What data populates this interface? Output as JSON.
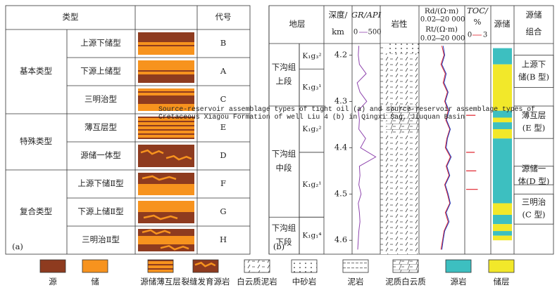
{
  "caption": "Source-reservoir assemblage types of tight oil (a) and source-reservoir assemblage types of Cretaceous Xiagou Formation of well Liu 4 (b) in Qingxi Sag, Jiuquan Basin",
  "panel_a": {
    "label": "(a)",
    "header": {
      "type": "类型",
      "code": "代号"
    },
    "source_color": "#8e3b1f",
    "reservoir_color": "#f7931e",
    "groups": [
      {
        "name": "基本类型",
        "rows": [
          {
            "subtype": "上源下储型",
            "code": "B"
          },
          {
            "subtype": "下源上储型",
            "code": "A"
          },
          {
            "subtype": "三明治型",
            "code": "C"
          }
        ]
      },
      {
        "name": "特殊类型",
        "rows": [
          {
            "subtype": "薄互层型",
            "code": "E"
          },
          {
            "subtype": "源储一体型",
            "code": "D"
          }
        ]
      },
      {
        "name": "复合类型",
        "rows": [
          {
            "subtype": "上源下储Ⅱ型",
            "code": "F"
          },
          {
            "subtype": "下源上储Ⅱ型",
            "code": "G"
          },
          {
            "subtype": "三明治Ⅱ型",
            "code": "H"
          }
        ]
      }
    ]
  },
  "panel_b": {
    "label": "(b)",
    "headers": {
      "strata": "地层",
      "depth": "深度/",
      "depth_unit": "km",
      "gr": "GR/API",
      "gr_scale": [
        0,
        500
      ],
      "lithology": "岩性",
      "rd": "Rd/(Ω·m)",
      "rt": "Rt/(Ω·m)",
      "res_scale": [
        0.02,
        {
          "value": 20000,
          "label": "20 000"
        }
      ],
      "toc": "TOC/",
      "toc_unit": "%",
      "toc_scale": [
        0,
        3
      ],
      "source_reservoir": "源储",
      "combo": [
        "源储",
        "组合"
      ]
    },
    "depth_lim": [
      4.175,
      4.63
    ],
    "depth_ticks": [
      4.2,
      4.3,
      4.4,
      4.5,
      4.6
    ],
    "stages": [
      {
        "lines": [
          "下沟组",
          "上段"
        ],
        "top": 4.175,
        "base": 4.31
      },
      {
        "lines": [
          "下沟组",
          "中段"
        ],
        "top": 4.31,
        "base": 4.55
      },
      {
        "lines": [
          "下沟组",
          "下段"
        ],
        "top": 4.55,
        "base": 4.63
      }
    ],
    "members": [
      {
        "label": "K₁g₃²",
        "top": 4.175,
        "base": 4.23
      },
      {
        "label": "K₁g₃¹",
        "top": 4.23,
        "base": 4.31
      },
      {
        "label": "K₁g₂²",
        "top": 4.31,
        "base": 4.41
      },
      {
        "label": "K₁g₂¹",
        "top": 4.41,
        "base": 4.55
      },
      {
        "label": "K₁g₁⁴",
        "top": 4.55,
        "base": 4.63
      }
    ],
    "logs": {
      "depth": [
        4.18,
        4.2,
        4.22,
        4.24,
        4.26,
        4.28,
        4.3,
        4.32,
        4.34,
        4.36,
        4.38,
        4.4,
        4.42,
        4.44,
        4.46,
        4.48,
        4.5,
        4.52,
        4.54,
        4.56,
        4.58,
        4.6,
        4.62
      ],
      "gr": [
        120,
        110,
        130,
        250,
        90,
        140,
        260,
        110,
        130,
        120,
        240,
        150,
        420,
        130,
        140,
        120,
        160,
        110,
        130,
        140,
        120,
        110,
        100
      ],
      "gr_color": "#8e44ad",
      "rd": [
        30,
        50,
        20,
        80,
        40,
        150,
        60,
        200,
        90,
        300,
        120,
        80,
        400,
        100,
        250,
        60,
        150,
        300,
        80,
        200,
        50,
        30,
        20
      ],
      "rd_color": "#1f3fbf",
      "rt": [
        20,
        40,
        15,
        60,
        30,
        120,
        50,
        150,
        70,
        250,
        100,
        60,
        300,
        80,
        200,
        50,
        120,
        250,
        60,
        150,
        40,
        25,
        15
      ],
      "rt_color": "#e0202a"
    },
    "toc": {
      "depth": [
        4.33,
        4.41,
        4.45,
        4.49
      ],
      "values": [
        1.2,
        1.1,
        1.3,
        1.5
      ],
      "color": "#e0202a"
    },
    "source_color": "#3dbfc0",
    "reservoir_color": "#f2e82a",
    "source_intervals": [
      [
        4.185,
        4.22
      ],
      [
        4.32,
        4.335
      ],
      [
        4.345,
        4.36
      ],
      [
        4.38,
        4.52
      ],
      [
        4.545,
        4.565
      ],
      [
        4.58,
        4.59
      ]
    ],
    "reservoir_intervals": [
      [
        4.22,
        4.32
      ],
      [
        4.335,
        4.345
      ],
      [
        4.36,
        4.38
      ],
      [
        4.52,
        4.545
      ],
      [
        4.565,
        4.58
      ],
      [
        4.59,
        4.6
      ]
    ],
    "combos": [
      {
        "lines": [
          "上源下",
          "储(B 型)"
        ],
        "top": 4.2,
        "base": 4.27
      },
      {
        "lines": [
          "薄互层",
          "(E 型)"
        ],
        "top": 4.31,
        "base": 4.38
      },
      {
        "lines": [
          "源储一",
          "体(D 型)"
        ],
        "top": 4.44,
        "base": 4.48
      },
      {
        "lines": [
          "三明治",
          "(C 型)"
        ],
        "top": 4.5,
        "base": 4.565
      }
    ]
  },
  "legend": [
    "源",
    "储",
    "源储薄互层",
    "裂缝发育源岩",
    "白云质泥岩",
    "中砂岩",
    "泥岩",
    "泥质白云质",
    "源岩",
    "储层"
  ]
}
